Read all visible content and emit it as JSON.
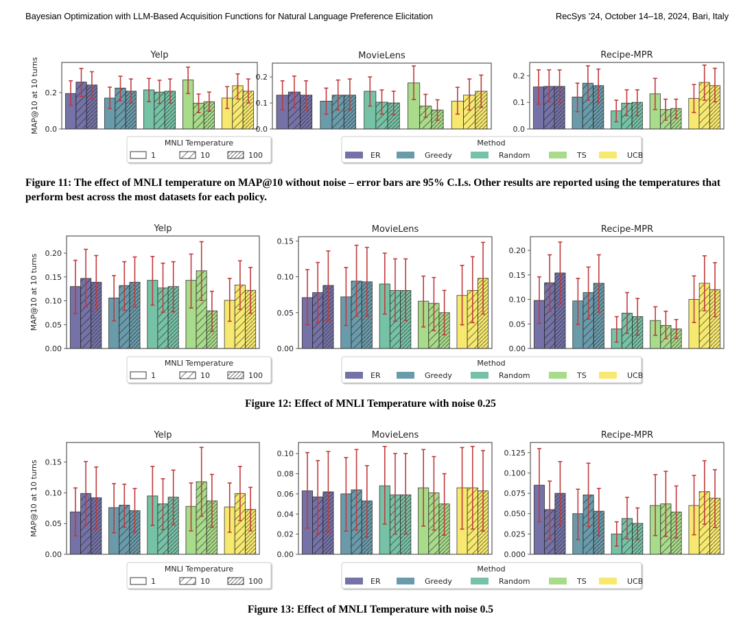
{
  "header": {
    "left": "Bayesian Optimization with LLM-Based Acquisition Functions for Natural Language Preference Elicitation",
    "right": "RecSys ’24, October 14–18, 2024, Bari, Italy"
  },
  "legend": {
    "temperature_title": "MNLI Temperature",
    "temperatures": [
      "1",
      "10",
      "100"
    ],
    "method_title": "Method",
    "methods": [
      "ER",
      "Greedy",
      "Random",
      "TS",
      "UCB"
    ],
    "colors": {
      "ER": "#7472a6",
      "Greedy": "#6a9bab",
      "Random": "#76c2a6",
      "TS": "#a8db8a",
      "UCB": "#f7e96f"
    },
    "error_bar_color": "#c0393b"
  },
  "figures": [
    {
      "caption": "Figure 11: The effect of MNLI temperature on MAP@10 without noise – error bars are 95% C.I.s. Other results are reported using the temperatures that perform best across the most datasets for each policy."
    },
    {
      "caption": "Figure 12: Effect of MNLI Temperature with noise 0.25"
    },
    {
      "caption": "Figure 13: Effect of MNLI Temperature with noise 0.5"
    }
  ],
  "chart_data": [
    {
      "type": "bar",
      "figure": "Figure 11",
      "title": "Yelp",
      "xlabel": "",
      "ylabel": "MAP@10 at 10 turns",
      "ylim": [
        0,
        0.366
      ],
      "yticks": [
        0.0,
        0.2
      ],
      "ytick_labels": [
        "0.0",
        "0.2"
      ],
      "categories": [
        "ER",
        "Greedy",
        "Random",
        "TS",
        "UCB"
      ],
      "series": [
        {
          "name": "1",
          "values": [
            0.195,
            0.17,
            0.215,
            0.27,
            0.17
          ],
          "ci_low": [
            0.13,
            0.113,
            0.15,
            0.195,
            0.113
          ],
          "ci_high": [
            0.265,
            0.23,
            0.278,
            0.34,
            0.233
          ]
        },
        {
          "name": "10",
          "values": [
            0.258,
            0.225,
            0.203,
            0.142,
            0.238
          ],
          "ci_low": [
            0.178,
            0.155,
            0.14,
            0.09,
            0.165
          ],
          "ci_high": [
            0.333,
            0.29,
            0.268,
            0.192,
            0.303
          ]
        },
        {
          "name": "100",
          "values": [
            0.242,
            0.208,
            0.208,
            0.15,
            0.208
          ],
          "ci_low": [
            0.168,
            0.143,
            0.143,
            0.098,
            0.143
          ],
          "ci_high": [
            0.315,
            0.275,
            0.275,
            0.203,
            0.275
          ]
        }
      ]
    },
    {
      "type": "bar",
      "figure": "Figure 11",
      "title": "MovieLens",
      "xlabel": "",
      "ylabel": "",
      "ylim": [
        0,
        0.253
      ],
      "yticks": [
        0.0,
        0.1,
        0.2
      ],
      "ytick_labels": [
        "0.0",
        "0.1",
        "0.2"
      ],
      "categories": [
        "ER",
        "Greedy",
        "Random",
        "TS",
        "UCB"
      ],
      "series": [
        {
          "name": "1",
          "values": [
            0.13,
            0.107,
            0.145,
            0.177,
            0.107
          ],
          "ci_low": [
            0.073,
            0.057,
            0.088,
            0.113,
            0.057
          ],
          "ci_high": [
            0.185,
            0.157,
            0.2,
            0.242,
            0.16
          ]
        },
        {
          "name": "10",
          "values": [
            0.142,
            0.13,
            0.103,
            0.088,
            0.13
          ],
          "ci_low": [
            0.082,
            0.073,
            0.057,
            0.045,
            0.073
          ],
          "ci_high": [
            0.203,
            0.188,
            0.15,
            0.133,
            0.192
          ]
        },
        {
          "name": "100",
          "values": [
            0.13,
            0.13,
            0.1,
            0.073,
            0.145
          ],
          "ci_low": [
            0.073,
            0.073,
            0.055,
            0.033,
            0.083
          ],
          "ci_high": [
            0.185,
            0.192,
            0.145,
            0.112,
            0.207
          ]
        }
      ]
    },
    {
      "type": "bar",
      "figure": "Figure 11",
      "title": "Recipe-MPR",
      "xlabel": "",
      "ylabel": "",
      "ylim": [
        0,
        0.25
      ],
      "yticks": [
        0.0,
        0.1,
        0.2
      ],
      "ytick_labels": [
        "0.0",
        "0.1",
        "0.2"
      ],
      "categories": [
        "ER",
        "Greedy",
        "Random",
        "TS",
        "UCB"
      ],
      "series": [
        {
          "name": "1",
          "values": [
            0.158,
            0.12,
            0.068,
            0.132,
            0.115
          ],
          "ci_low": [
            0.093,
            0.065,
            0.027,
            0.073,
            0.062
          ],
          "ci_high": [
            0.222,
            0.172,
            0.108,
            0.19,
            0.167
          ]
        },
        {
          "name": "10",
          "values": [
            0.16,
            0.172,
            0.097,
            0.073,
            0.175
          ],
          "ci_low": [
            0.102,
            0.108,
            0.05,
            0.033,
            0.108
          ],
          "ci_high": [
            0.222,
            0.237,
            0.147,
            0.112,
            0.24
          ]
        },
        {
          "name": "100",
          "values": [
            0.16,
            0.163,
            0.1,
            0.077,
            0.163
          ],
          "ci_low": [
            0.1,
            0.1,
            0.05,
            0.04,
            0.102
          ],
          "ci_high": [
            0.222,
            0.225,
            0.147,
            0.112,
            0.228
          ]
        }
      ]
    },
    {
      "type": "bar",
      "figure": "Figure 12",
      "title": "Yelp",
      "xlabel": "",
      "ylabel": "MAP@10 at 10 turns",
      "ylim": [
        0,
        0.236
      ],
      "yticks": [
        0.0,
        0.05,
        0.1,
        0.15,
        0.2
      ],
      "ytick_labels": [
        "0.00",
        "0.05",
        "0.10",
        "0.15",
        "0.20"
      ],
      "categories": [
        "ER",
        "Greedy",
        "Random",
        "TS",
        "UCB"
      ],
      "series": [
        {
          "name": "1",
          "values": [
            0.13,
            0.106,
            0.143,
            0.143,
            0.101
          ],
          "ci_low": [
            0.073,
            0.058,
            0.091,
            0.085,
            0.057
          ],
          "ci_high": [
            0.185,
            0.153,
            0.193,
            0.198,
            0.147
          ]
        },
        {
          "name": "10",
          "values": [
            0.147,
            0.132,
            0.127,
            0.163,
            0.133
          ],
          "ci_low": [
            0.087,
            0.08,
            0.076,
            0.101,
            0.082
          ],
          "ci_high": [
            0.208,
            0.182,
            0.179,
            0.224,
            0.184
          ]
        },
        {
          "name": "100",
          "values": [
            0.139,
            0.139,
            0.13,
            0.079,
            0.122
          ],
          "ci_low": [
            0.083,
            0.087,
            0.077,
            0.036,
            0.074
          ],
          "ci_high": [
            0.195,
            0.192,
            0.182,
            0.12,
            0.17
          ]
        }
      ]
    },
    {
      "type": "bar",
      "figure": "Figure 12",
      "title": "MovieLens",
      "xlabel": "",
      "ylabel": "",
      "ylim": [
        0,
        0.156
      ],
      "yticks": [
        0.0,
        0.05,
        0.1,
        0.15
      ],
      "ytick_labels": [
        "0.00",
        "0.05",
        "0.10",
        "0.15"
      ],
      "categories": [
        "ER",
        "Greedy",
        "Random",
        "TS",
        "UCB"
      ],
      "series": [
        {
          "name": "1",
          "values": [
            0.071,
            0.072,
            0.09,
            0.066,
            0.074
          ],
          "ci_low": [
            0.033,
            0.032,
            0.048,
            0.03,
            0.033
          ],
          "ci_high": [
            0.11,
            0.113,
            0.133,
            0.101,
            0.116
          ]
        },
        {
          "name": "10",
          "values": [
            0.078,
            0.094,
            0.081,
            0.063,
            0.081
          ],
          "ci_low": [
            0.036,
            0.045,
            0.038,
            0.025,
            0.036
          ],
          "ci_high": [
            0.12,
            0.144,
            0.125,
            0.099,
            0.128
          ]
        },
        {
          "name": "100",
          "values": [
            0.088,
            0.093,
            0.081,
            0.05,
            0.098
          ],
          "ci_low": [
            0.039,
            0.045,
            0.039,
            0.019,
            0.048
          ],
          "ci_high": [
            0.136,
            0.141,
            0.125,
            0.081,
            0.148
          ]
        }
      ]
    },
    {
      "type": "bar",
      "figure": "Figure 12",
      "title": "Recipe-MPR",
      "xlabel": "",
      "ylabel": "",
      "ylim": [
        0,
        0.228
      ],
      "yticks": [
        0.0,
        0.05,
        0.1,
        0.15,
        0.2
      ],
      "ytick_labels": [
        "0.00",
        "0.05",
        "0.10",
        "0.15",
        "0.20"
      ],
      "categories": [
        "ER",
        "Greedy",
        "Random",
        "TS",
        "UCB"
      ],
      "series": [
        {
          "name": "1",
          "values": [
            0.098,
            0.097,
            0.04,
            0.057,
            0.1
          ],
          "ci_low": [
            0.051,
            0.049,
            0.013,
            0.027,
            0.053
          ],
          "ci_high": [
            0.146,
            0.143,
            0.065,
            0.085,
            0.148
          ]
        },
        {
          "name": "10",
          "values": [
            0.134,
            0.114,
            0.072,
            0.047,
            0.133
          ],
          "ci_low": [
            0.075,
            0.06,
            0.031,
            0.02,
            0.077
          ],
          "ci_high": [
            0.191,
            0.166,
            0.114,
            0.076,
            0.189
          ]
        },
        {
          "name": "100",
          "values": [
            0.154,
            0.133,
            0.065,
            0.04,
            0.12
          ],
          "ci_low": [
            0.091,
            0.074,
            0.027,
            0.02,
            0.065
          ],
          "ci_high": [
            0.217,
            0.191,
            0.102,
            0.059,
            0.175
          ]
        }
      ]
    },
    {
      "type": "bar",
      "figure": "Figure 13",
      "title": "Yelp",
      "xlabel": "",
      "ylabel": "MAP@10 at 10 turns",
      "ylim": [
        0,
        0.182
      ],
      "yticks": [
        0.0,
        0.05,
        0.1,
        0.15
      ],
      "ytick_labels": [
        "0.00",
        "0.05",
        "0.10",
        "0.15"
      ],
      "categories": [
        "ER",
        "Greedy",
        "Random",
        "TS",
        "UCB"
      ],
      "series": [
        {
          "name": "1",
          "values": [
            0.069,
            0.076,
            0.095,
            0.078,
            0.077
          ],
          "ci_low": [
            0.03,
            0.035,
            0.047,
            0.038,
            0.036
          ],
          "ci_high": [
            0.108,
            0.115,
            0.143,
            0.116,
            0.116
          ]
        },
        {
          "name": "10",
          "values": [
            0.099,
            0.08,
            0.082,
            0.118,
            0.099
          ],
          "ci_low": [
            0.048,
            0.044,
            0.04,
            0.062,
            0.055
          ],
          "ci_high": [
            0.151,
            0.114,
            0.123,
            0.174,
            0.143
          ]
        },
        {
          "name": "100",
          "values": [
            0.092,
            0.071,
            0.093,
            0.087,
            0.073
          ],
          "ci_low": [
            0.042,
            0.036,
            0.048,
            0.044,
            0.038
          ],
          "ci_high": [
            0.142,
            0.107,
            0.137,
            0.13,
            0.109
          ]
        }
      ]
    },
    {
      "type": "bar",
      "figure": "Figure 13",
      "title": "MovieLens",
      "xlabel": "",
      "ylabel": "",
      "ylim": [
        0,
        0.111
      ],
      "yticks": [
        0.0,
        0.02,
        0.04,
        0.06,
        0.08,
        0.1
      ],
      "ytick_labels": [
        "0.00",
        "0.02",
        "0.04",
        "0.06",
        "0.08",
        "0.10"
      ],
      "categories": [
        "ER",
        "Greedy",
        "Random",
        "TS",
        "UCB"
      ],
      "series": [
        {
          "name": "1",
          "values": [
            0.063,
            0.06,
            0.068,
            0.066,
            0.066
          ],
          "ci_low": [
            0.026,
            0.023,
            0.03,
            0.028,
            0.025
          ],
          "ci_high": [
            0.101,
            0.096,
            0.107,
            0.104,
            0.106
          ]
        },
        {
          "name": "10",
          "values": [
            0.057,
            0.064,
            0.059,
            0.061,
            0.066
          ],
          "ci_low": [
            0.02,
            0.024,
            0.02,
            0.024,
            0.025
          ],
          "ci_high": [
            0.093,
            0.104,
            0.1,
            0.097,
            0.107
          ]
        },
        {
          "name": "100",
          "values": [
            0.062,
            0.053,
            0.059,
            0.05,
            0.063
          ],
          "ci_low": [
            0.022,
            0.017,
            0.02,
            0.019,
            0.023
          ],
          "ci_high": [
            0.102,
            0.088,
            0.1,
            0.08,
            0.103
          ]
        }
      ]
    },
    {
      "type": "bar",
      "figure": "Figure 13",
      "title": "Recipe-MPR",
      "xlabel": "",
      "ylabel": "",
      "ylim": [
        0,
        0.1375
      ],
      "yticks": [
        0.0,
        0.025,
        0.05,
        0.075,
        0.1,
        0.125
      ],
      "ytick_labels": [
        "0.000",
        "0.025",
        "0.050",
        "0.075",
        "0.100",
        "0.125"
      ],
      "categories": [
        "ER",
        "Greedy",
        "Random",
        "TS",
        "UCB"
      ],
      "series": [
        {
          "name": "1",
          "values": [
            0.085,
            0.05,
            0.025,
            0.06,
            0.06
          ],
          "ci_low": [
            0.04,
            0.018,
            0.01,
            0.023,
            0.024
          ],
          "ci_high": [
            0.13,
            0.08,
            0.04,
            0.098,
            0.097
          ]
        },
        {
          "name": "10",
          "values": [
            0.055,
            0.073,
            0.044,
            0.062,
            0.077
          ],
          "ci_low": [
            0.019,
            0.034,
            0.019,
            0.022,
            0.037
          ],
          "ci_high": [
            0.09,
            0.112,
            0.07,
            0.102,
            0.115
          ]
        },
        {
          "name": "100",
          "values": [
            0.075,
            0.053,
            0.038,
            0.052,
            0.069
          ],
          "ci_low": [
            0.036,
            0.023,
            0.018,
            0.02,
            0.033
          ],
          "ci_high": [
            0.114,
            0.081,
            0.057,
            0.084,
            0.104
          ]
        }
      ]
    }
  ]
}
